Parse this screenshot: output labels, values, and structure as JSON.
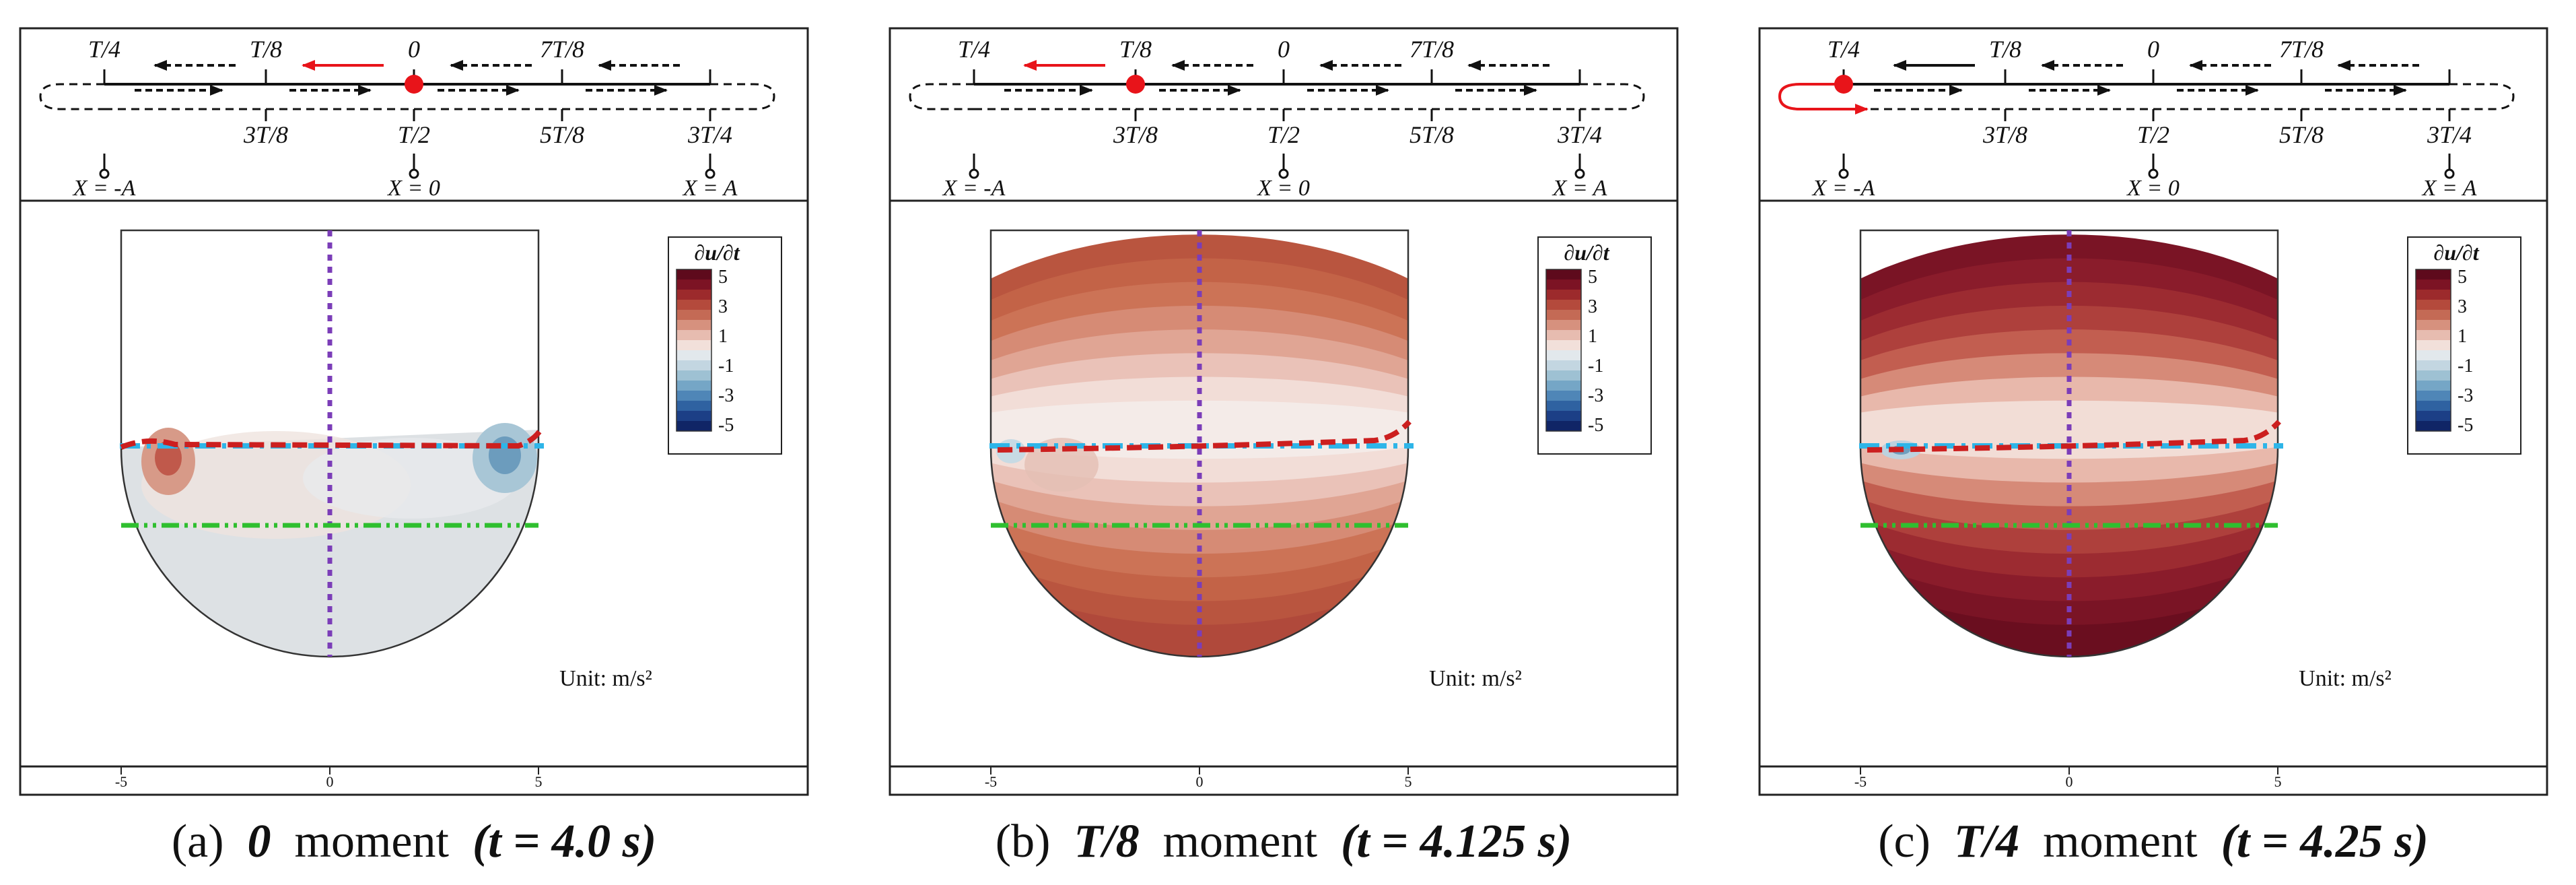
{
  "figure": {
    "schematic": {
      "top_labels": [
        "T/4",
        "T/8",
        "0",
        "7T/8"
      ],
      "bottom_labels": [
        "3T/8",
        "T/2",
        "5T/8",
        "3T/4"
      ],
      "position_labels": [
        "X = -A",
        "X = 0",
        "X = A"
      ]
    },
    "colorbar": {
      "title": "∂u/∂t",
      "ticks": [
        "5",
        "3",
        "1",
        "-1",
        "-3",
        "-5"
      ],
      "colors_top_to_bottom": [
        "#5e0a1c",
        "#7c1324",
        "#9c2a2c",
        "#b44a3c",
        "#c46a55",
        "#d6917e",
        "#e7bcb0",
        "#f2e0da",
        "#e2e8ec",
        "#c3d6e1",
        "#9ec1d3",
        "#75a6c6",
        "#4f86b7",
        "#2f62a1",
        "#1c3f86",
        "#102566"
      ]
    },
    "unit_label": "Unit: m/s²",
    "x_axis_ticks": [
      "-5",
      "0",
      "5"
    ],
    "line_colors": {
      "free_surface": "#cc1f1f",
      "static_level": "#2eb5e8",
      "mid_level": "#2fbf2f",
      "center_axis": "#7b3db8",
      "tank_outline": "#333333",
      "red_marker": "#e8141a"
    },
    "panels": [
      {
        "id": "a",
        "caption": {
          "prefix": "(a)",
          "moment": "0",
          "middle": "moment",
          "time": "(t = 4.0 s)"
        },
        "marker": "0",
        "field_level": "near-zero"
      },
      {
        "id": "b",
        "caption": {
          "prefix": "(b)",
          "moment": "T/8",
          "middle": "moment",
          "time": "(t = 4.125 s)"
        },
        "marker": "T/8",
        "field_level": "moderate"
      },
      {
        "id": "c",
        "caption": {
          "prefix": "(c)",
          "moment": "T/4",
          "middle": "moment",
          "time": "(t = 4.25 s)"
        },
        "marker": "T/4",
        "field_level": "high"
      }
    ]
  }
}
